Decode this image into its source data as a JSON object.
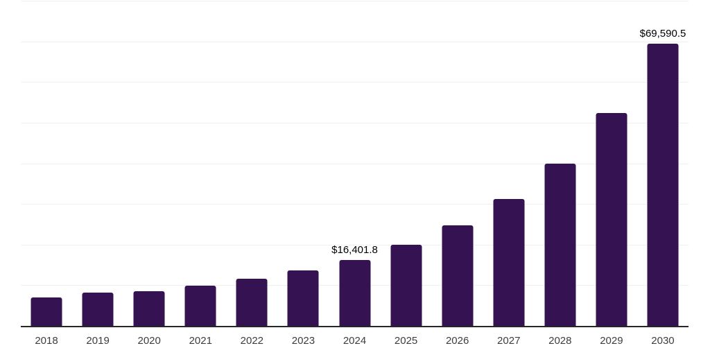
{
  "chart_data": {
    "type": "bar",
    "categories": [
      "2018",
      "2019",
      "2020",
      "2021",
      "2022",
      "2023",
      "2024",
      "2025",
      "2026",
      "2027",
      "2028",
      "2029",
      "2030"
    ],
    "values": [
      7150,
      8400,
      8750,
      10000,
      11850,
      13750,
      16401.8,
      20100,
      24850,
      31400,
      40100,
      52500,
      69590.5
    ],
    "data_labels": [
      "",
      "",
      "",
      "",
      "",
      "",
      "$16,401.8",
      "",
      "",
      "",
      "",
      "",
      "$69,590.5"
    ],
    "ylim": [
      0,
      80000
    ],
    "gridline_interval": 10000,
    "grid": true,
    "legend": "none",
    "bar_color": "#351252",
    "axis_line_color": "#262626",
    "gridline_color": "#f0f0f2",
    "tick_label_color": "#3d3d3d",
    "data_label_color": "#000000"
  }
}
